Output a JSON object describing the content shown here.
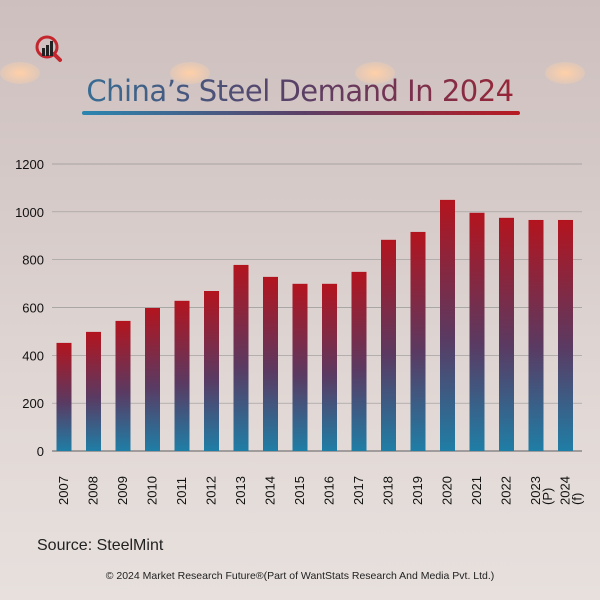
{
  "title": "China’s Steel Demand In 2024",
  "source": "Source: SteelMint",
  "copyright": "© 2024 Market Research Future®(Part of WantStats Research And Media Pvt. Ltd.)",
  "colors": {
    "bar_top": "#b3141e",
    "bar_bottom": "#1f7ea6"
  },
  "chart_data": {
    "type": "bar",
    "title": "China’s Steel Demand In 2024",
    "xlabel": "",
    "ylabel": "",
    "categories": [
      "2007",
      "2008",
      "2009",
      "2010",
      "2011",
      "2012",
      "2013",
      "2014",
      "2015",
      "2016",
      "2017",
      "2018",
      "2019",
      "2020",
      "2021",
      "2022",
      "2023 (P)",
      "2024 (f)"
    ],
    "values": [
      452,
      498,
      544,
      598,
      628,
      669,
      778,
      728,
      699,
      699,
      749,
      883,
      916,
      1050,
      996,
      975,
      966,
      966
    ],
    "ylim": [
      0,
      1200
    ],
    "yticks": [
      "0",
      "200",
      "400",
      "600",
      "800",
      "1000",
      "1200"
    ],
    "grid": true
  }
}
